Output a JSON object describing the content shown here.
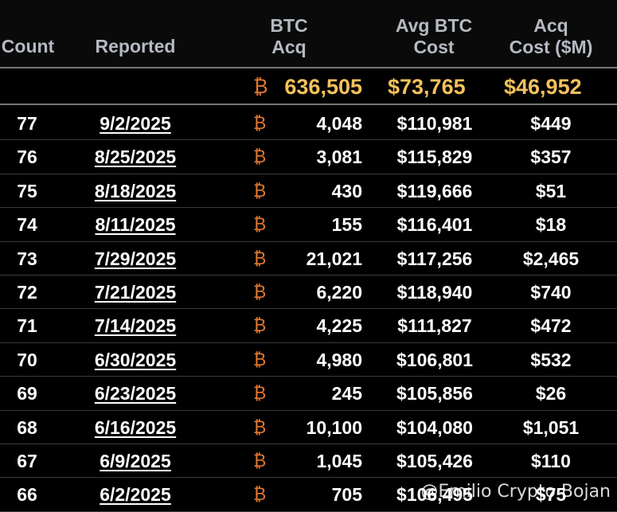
{
  "headers": {
    "count": "Count",
    "reported": "Reported",
    "btc_acq_line1": "BTC",
    "btc_acq_line2": "Acq",
    "avg_cost_line1": "Avg BTC",
    "avg_cost_line2": "Cost",
    "acq_cost_line1": "Acq",
    "acq_cost_line2": "Cost ($M)"
  },
  "totals": {
    "btc_symbol": "₿",
    "btc_acq": "636,505",
    "avg_cost": "$73,765",
    "acq_cost": "$46,952"
  },
  "rows": [
    {
      "count": "77",
      "date": "9/2/2025",
      "btc_symbol": "₿",
      "btc": "4,048",
      "avg": "$110,981",
      "acq": "$449"
    },
    {
      "count": "76",
      "date": "8/25/2025",
      "btc_symbol": "₿",
      "btc": "3,081",
      "avg": "$115,829",
      "acq": "$357"
    },
    {
      "count": "75",
      "date": "8/18/2025",
      "btc_symbol": "₿",
      "btc": "430",
      "avg": "$119,666",
      "acq": "$51"
    },
    {
      "count": "74",
      "date": "8/11/2025",
      "btc_symbol": "₿",
      "btc": "155",
      "avg": "$116,401",
      "acq": "$18"
    },
    {
      "count": "73",
      "date": "7/29/2025",
      "btc_symbol": "₿",
      "btc": "21,021",
      "avg": "$117,256",
      "acq": "$2,465"
    },
    {
      "count": "72",
      "date": "7/21/2025",
      "btc_symbol": "₿",
      "btc": "6,220",
      "avg": "$118,940",
      "acq": "$740"
    },
    {
      "count": "71",
      "date": "7/14/2025",
      "btc_symbol": "₿",
      "btc": "4,225",
      "avg": "$111,827",
      "acq": "$472"
    },
    {
      "count": "70",
      "date": "6/30/2025",
      "btc_symbol": "₿",
      "btc": "4,980",
      "avg": "$106,801",
      "acq": "$532"
    },
    {
      "count": "69",
      "date": "6/23/2025",
      "btc_symbol": "₿",
      "btc": "245",
      "avg": "$105,856",
      "acq": "$26"
    },
    {
      "count": "68",
      "date": "6/16/2025",
      "btc_symbol": "₿",
      "btc": "10,100",
      "avg": "$104,080",
      "acq": "$1,051"
    },
    {
      "count": "67",
      "date": "6/9/2025",
      "btc_symbol": "₿",
      "btc": "1,045",
      "avg": "$105,426",
      "acq": "$110"
    },
    {
      "count": "66",
      "date": "6/2/2025",
      "btc_symbol": "₿",
      "btc": "705",
      "avg": "$106,495",
      "acq": "$75"
    }
  ],
  "watermark": "@Emilio Crypto Bojan",
  "colors": {
    "gold": "#f4c15d",
    "btc_orange": "#e1782e",
    "header_text": "#b5b9c2"
  }
}
